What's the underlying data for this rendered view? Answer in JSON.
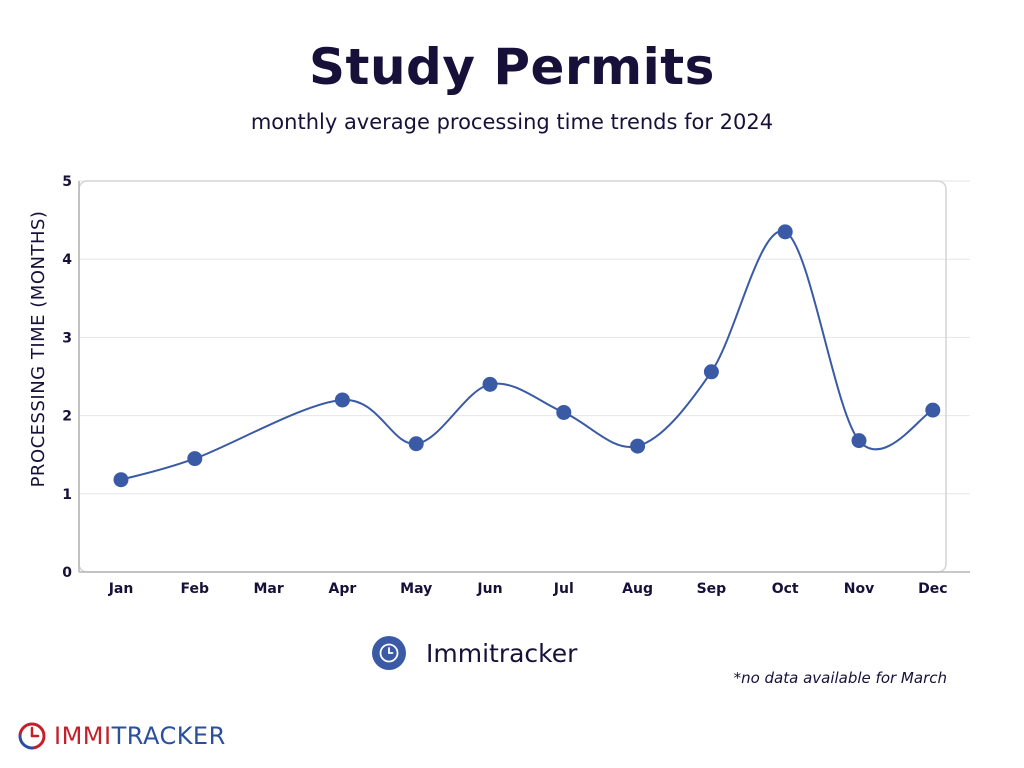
{
  "title": "Study Permits",
  "subtitle": "monthly average processing time trends for 2024",
  "legend_label": "Immitracker",
  "footnote": "*no data available for March",
  "logo": {
    "part_a": "IMMI",
    "part_b": "TRACKER"
  },
  "colors": {
    "series": "#3a5aa5",
    "title": "#17113a",
    "grid": "#e6e6e6",
    "frame": "#d4d4d4",
    "logo_red": "#c3202c",
    "logo_blue": "#2a4f9e"
  },
  "chart_data": {
    "type": "line",
    "title": "Study Permits",
    "subtitle": "monthly average processing time trends for 2024",
    "xlabel": "",
    "ylabel": "PROCESSING TIME (MONTHS)",
    "categories": [
      "Jan",
      "Feb",
      "Mar",
      "Apr",
      "May",
      "Jun",
      "Jul",
      "Aug",
      "Sep",
      "Oct",
      "Nov",
      "Dec"
    ],
    "series": [
      {
        "name": "Immitracker",
        "values": [
          1.18,
          1.45,
          null,
          2.2,
          1.64,
          2.4,
          2.04,
          1.61,
          2.56,
          4.35,
          1.68,
          2.07
        ]
      }
    ],
    "ylim": [
      0,
      5
    ],
    "yticks": [
      0,
      1,
      2,
      3,
      4,
      5
    ],
    "grid": true,
    "smooth": true,
    "legend": "bottom-center"
  }
}
